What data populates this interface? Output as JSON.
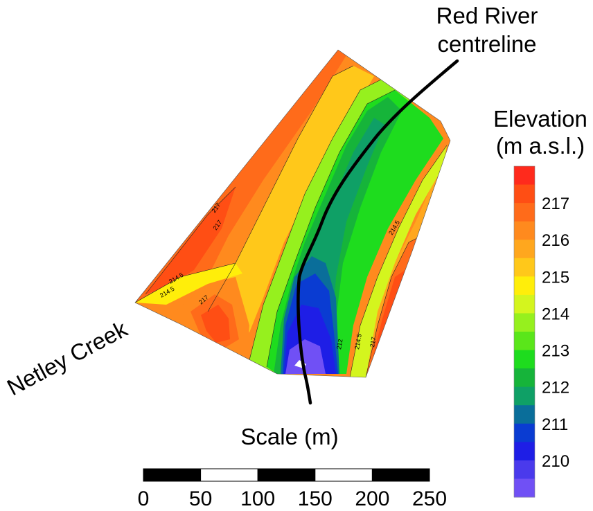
{
  "annotations": {
    "river_label_line1": "Red River",
    "river_label_line2": "centreline",
    "creek_label": "Netley Creek"
  },
  "legend": {
    "title_line1": "Elevation",
    "title_line2": "(m a.s.l.)",
    "bands": [
      {
        "color": "#ff2a1c"
      },
      {
        "color": "#ff4e14"
      },
      {
        "color": "#ff6b1a"
      },
      {
        "color": "#ff8a1e"
      },
      {
        "color": "#ffa71e"
      },
      {
        "color": "#ffc81a"
      },
      {
        "color": "#ffee0a"
      },
      {
        "color": "#d4f51e"
      },
      {
        "color": "#96f01e"
      },
      {
        "color": "#5ae61a"
      },
      {
        "color": "#1edc1e"
      },
      {
        "color": "#16b43a"
      },
      {
        "color": "#0fa066"
      },
      {
        "color": "#0a6e9a"
      },
      {
        "color": "#0a3cd2"
      },
      {
        "color": "#1e1ee6"
      },
      {
        "color": "#4a3aec"
      },
      {
        "color": "#7050f5"
      }
    ],
    "tick_labels": [
      "217",
      "216",
      "215",
      "214",
      "213",
      "212",
      "211",
      "210"
    ]
  },
  "contour_labels": [
    "217",
    "217",
    "214.5",
    "214.5",
    "217",
    "214.5",
    "212",
    "214.5",
    "217"
  ],
  "scale": {
    "title": "Scale (m)",
    "ticks": [
      "0",
      "50",
      "100",
      "150",
      "200",
      "250"
    ]
  }
}
